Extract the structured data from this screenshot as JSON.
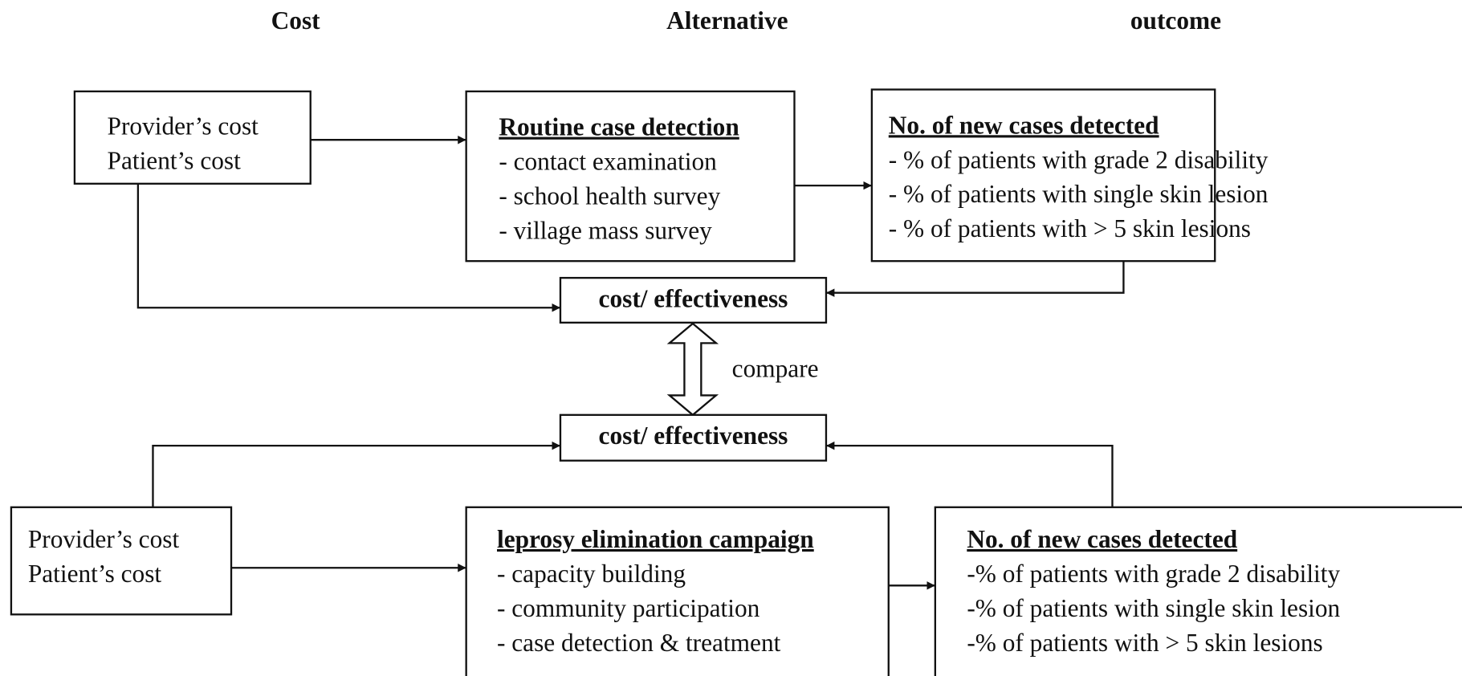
{
  "headers": [
    "Cost",
    "Alternative",
    "outcome"
  ],
  "nodes": [
    {
      "lines": [
        "Provider’s cost",
        "Patient’s cost"
      ]
    },
    {
      "title": "Routine case detection",
      "lines": [
        "- contact examination",
        "- school health survey",
        "- village mass survey"
      ]
    },
    {
      "title": "No. of new cases detected",
      "lines": [
        "- % of patients with grade 2 disability",
        "- % of patients with single skin lesion",
        "- % of patients with > 5 skin lesions"
      ]
    },
    {
      "title": "cost/ effectiveness"
    },
    {
      "title": "cost/ effectiveness"
    },
    {
      "lines": [
        "Provider’s cost",
        "Patient’s cost"
      ]
    },
    {
      "title": "leprosy elimination campaign",
      "lines": [
        "- capacity building",
        "- community participation",
        "- case detection & treatment"
      ]
    },
    {
      "title": "No. of new cases detected",
      "lines": [
        "-% of patients with grade 2 disability",
        "-% of patients with single skin lesion",
        "-% of patients with > 5 skin lesions"
      ]
    }
  ],
  "compare": "compare"
}
